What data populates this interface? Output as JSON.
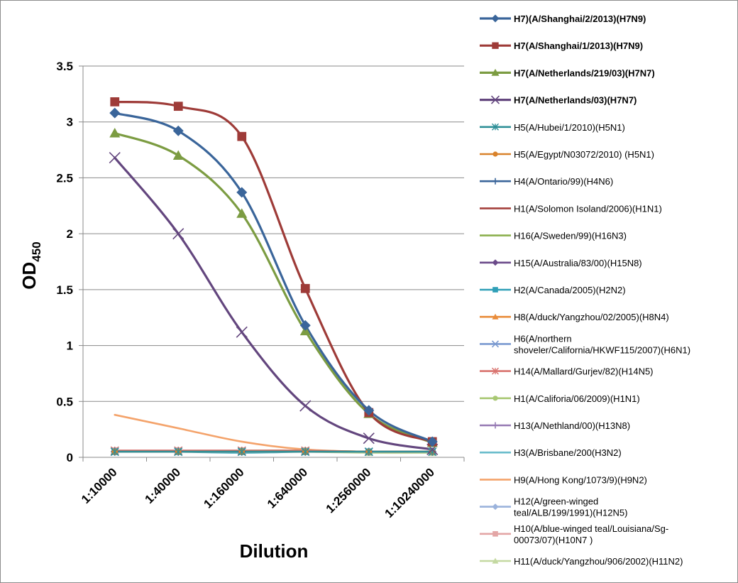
{
  "chart_data": {
    "type": "line",
    "title": "",
    "xlabel": "Dilution",
    "ylabel": "OD",
    "ylabel_subscript": "450",
    "categories": [
      "1:10000",
      "1:40000",
      "1:160000",
      "1:640000",
      "1:2560000",
      "1:10240000"
    ],
    "ylim": [
      0,
      3.5
    ],
    "yticks": [
      "0",
      "0.5",
      "1",
      "1.5",
      "2",
      "2.5",
      "3",
      "3.5"
    ],
    "grid": "horizontal",
    "legend_position": "right",
    "series": [
      {
        "name": "H7)(A/Shanghai/2/2013)(H7N9)",
        "legend_lines": [
          "H7)(A/Shanghai/2/2013)(H7N9)"
        ],
        "bold": true,
        "color": "#3A659A",
        "marker": "diamond",
        "values": [
          3.08,
          2.92,
          2.37,
          1.18,
          0.42,
          0.14
        ]
      },
      {
        "name": "H7(A/Shanghai/1/2013)(H7N9)",
        "legend_lines": [
          "H7(A/Shanghai/1/2013)(H7N9)"
        ],
        "bold": true,
        "color": "#9E3B38",
        "marker": "square",
        "values": [
          3.18,
          3.14,
          2.87,
          1.51,
          0.4,
          0.14
        ]
      },
      {
        "name": "H7(A/Netherlands/219/03)(H7N7)",
        "legend_lines": [
          "H7(A/Netherlands/219/03)(H7N7)"
        ],
        "bold": true,
        "color": "#7C9C42",
        "marker": "triangle",
        "values": [
          2.9,
          2.7,
          2.18,
          1.13,
          0.39,
          0.13
        ]
      },
      {
        "name": "H7(A/Netherlands/03)(H7N7)",
        "legend_lines": [
          "H7(A/Netherlands/03)(H7N7)"
        ],
        "bold": true,
        "color": "#63467E",
        "marker": "x",
        "values": [
          2.68,
          2.0,
          1.12,
          0.46,
          0.17,
          0.07
        ]
      },
      {
        "name": "H5(A/Hubei/1/2010)(H5N1)",
        "legend_lines": [
          "H5(A/Hubei/1/2010)(H5N1)"
        ],
        "bold": false,
        "color": "#2E8F97",
        "marker": "asterisk",
        "values": [
          0.05,
          0.05,
          0.05,
          0.05,
          0.05,
          0.05
        ]
      },
      {
        "name": "H5(A/Egypt/N03072/2010) (H5N1)",
        "legend_lines": [
          "H5(A/Egypt/N03072/2010) (H5N1)"
        ],
        "bold": false,
        "color": "#D9822B",
        "marker": "circle",
        "values": [
          0.05,
          0.05,
          0.05,
          0.05,
          0.05,
          0.05
        ]
      },
      {
        "name": "H4(A/Ontario/99)(H4N6)",
        "legend_lines": [
          "H4(A/Ontario/99)(H4N6)"
        ],
        "bold": false,
        "color": "#3A659A",
        "marker": "plus",
        "values": [
          0.05,
          0.05,
          0.05,
          0.05,
          0.05,
          0.05
        ]
      },
      {
        "name": "H1(A/Solomon Isoland/2006)(H1N1)",
        "legend_lines": [
          "H1(A/Solomon Isoland/2006)(H1N1)"
        ],
        "bold": false,
        "color": "#A4403C",
        "marker": "none",
        "values": [
          0.05,
          0.05,
          0.05,
          0.05,
          0.05,
          0.05
        ]
      },
      {
        "name": "H16(A/Sweden/99)(H16N3)",
        "legend_lines": [
          "H16(A/Sweden/99)(H16N3)"
        ],
        "bold": false,
        "color": "#8BB04E",
        "marker": "none",
        "values": [
          0.05,
          0.05,
          0.05,
          0.05,
          0.05,
          0.05
        ]
      },
      {
        "name": "H15(A/Australia/83/00)(H15N8)",
        "legend_lines": [
          "H15(A/Australia/83/00)(H15N8)"
        ],
        "bold": false,
        "color": "#6B4A8A",
        "marker": "diamond",
        "values": [
          0.05,
          0.05,
          0.05,
          0.05,
          0.05,
          0.05
        ]
      },
      {
        "name": "H2(A/Canada/2005)(H2N2)",
        "legend_lines": [
          "H2(A/Canada/2005)(H2N2)"
        ],
        "bold": false,
        "color": "#2F9FB7",
        "marker": "square",
        "values": [
          0.05,
          0.05,
          0.05,
          0.05,
          0.05,
          0.05
        ]
      },
      {
        "name": "H8(A/duck/Yangzhou/02/2005)(H8N4)",
        "legend_lines": [
          "H8(A/duck/Yangzhou/02/2005)(H8N4)"
        ],
        "bold": false,
        "color": "#E98C3A",
        "marker": "triangle",
        "values": [
          0.05,
          0.05,
          0.05,
          0.05,
          0.05,
          0.05
        ]
      },
      {
        "name": "H6(A/northern shoveler/California/HKWF115/2007)(H6N1)",
        "legend_lines": [
          "H6(A/northern",
          "shoveler/California/HKWF115/2007)(H6N1)"
        ],
        "bold": false,
        "color": "#7A9AD0",
        "marker": "x",
        "values": [
          0.05,
          0.05,
          0.05,
          0.05,
          0.05,
          0.05
        ]
      },
      {
        "name": "H14(A/Mallard/Gurjev/82)(H14N5)",
        "legend_lines": [
          "H14(A/Mallard/Gurjev/82)(H14N5)"
        ],
        "bold": false,
        "color": "#D9736E",
        "marker": "asterisk",
        "values": [
          0.06,
          0.06,
          0.06,
          0.06,
          0.05,
          0.05
        ]
      },
      {
        "name": "H1(A/Califoria/06/2009)(H1N1)",
        "legend_lines": [
          "H1(A/Califoria/06/2009)(H1N1)"
        ],
        "bold": false,
        "color": "#A8C873",
        "marker": "circle",
        "values": [
          0.05,
          0.05,
          0.06,
          0.06,
          0.05,
          0.05
        ]
      },
      {
        "name": "H13(A/Nethland/00)(H13N8)",
        "legend_lines": [
          "H13(A/Nethland/00)(H13N8)"
        ],
        "bold": false,
        "color": "#9579B3",
        "marker": "plus",
        "values": [
          0.05,
          0.05,
          0.05,
          0.05,
          0.05,
          0.05
        ]
      },
      {
        "name": "H3(A/Brisbane/200(H3N2)",
        "legend_lines": [
          "H3(A/Brisbane/200(H3N2)"
        ],
        "bold": false,
        "color": "#68BCCB",
        "marker": "none",
        "values": [
          0.05,
          0.05,
          0.04,
          0.05,
          0.05,
          0.05
        ]
      },
      {
        "name": "H9(A/Hong Kong/1073/9)(H9N2)",
        "legend_lines": [
          "H9(A/Hong Kong/1073/9)(H9N2)"
        ],
        "bold": false,
        "color": "#F4A36B",
        "marker": "none",
        "values": [
          0.38,
          0.26,
          0.14,
          0.07,
          0.05,
          0.05
        ]
      },
      {
        "name": "H12(A/green-winged teal/ALB/199/1991)(H12N5)",
        "legend_lines": [
          "H12(A/green-winged",
          "teal/ALB/199/1991)(H12N5)"
        ],
        "bold": false,
        "color": "#9BB3DC",
        "marker": "diamond",
        "values": [
          0.05,
          0.05,
          0.05,
          0.05,
          0.05,
          0.05
        ]
      },
      {
        "name": "H10(A/blue-winged teal/Louisiana/Sg-00073/07)(H10N7 )",
        "legend_lines": [
          "H10(A/blue-winged teal/Louisiana/Sg-",
          "00073/07)(H10N7 )"
        ],
        "bold": false,
        "color": "#E3A6A6",
        "marker": "square",
        "values": [
          0.06,
          0.06,
          0.06,
          0.06,
          0.05,
          0.05
        ]
      },
      {
        "name": "H11(A/duck/Yangzhou/906/2002)(H11N2)",
        "legend_lines": [
          "H11(A/duck/Yangzhou/906/2002)(H11N2)"
        ],
        "bold": false,
        "color": "#C4D9A1",
        "marker": "triangle",
        "values": [
          0.05,
          0.05,
          0.05,
          0.05,
          0.04,
          0.04
        ]
      }
    ]
  }
}
